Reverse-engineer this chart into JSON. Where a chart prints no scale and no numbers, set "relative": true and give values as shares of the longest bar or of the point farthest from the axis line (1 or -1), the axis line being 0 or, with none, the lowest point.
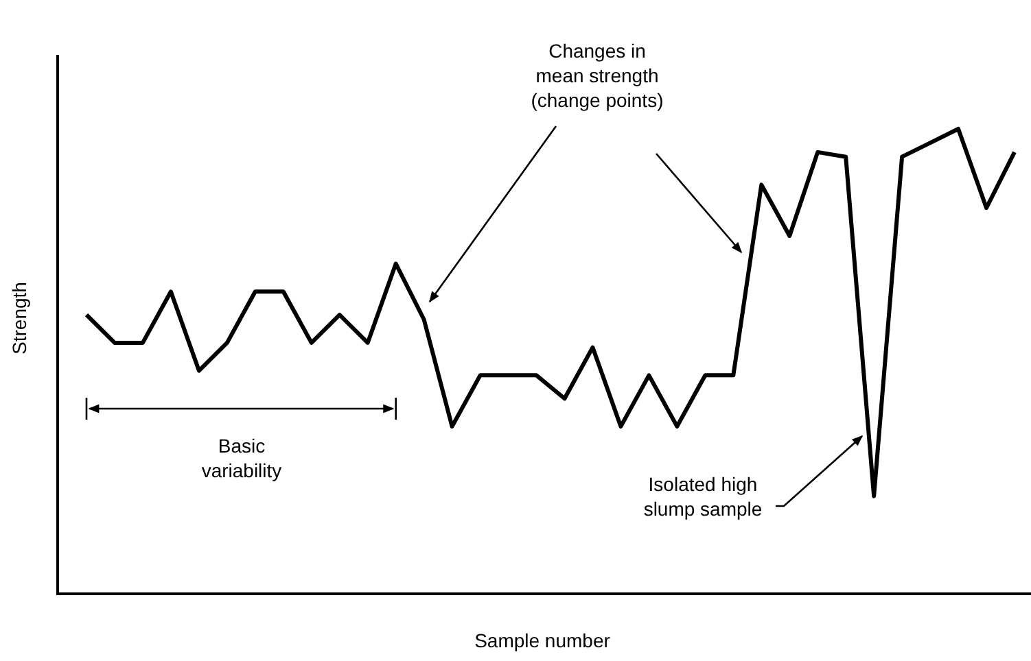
{
  "chart_data": {
    "type": "line",
    "relative": true,
    "xlabel": "Sample number",
    "ylabel": "Strength",
    "color": "#000000",
    "categories": [
      null,
      null,
      null,
      null,
      null,
      null,
      null,
      null,
      null,
      null,
      null,
      null,
      null,
      null,
      null,
      null,
      null,
      null,
      null,
      null,
      null,
      null,
      null,
      null,
      null,
      null,
      null,
      null,
      null,
      null,
      null,
      null,
      null,
      null
    ],
    "values": [
      0.6,
      0.54,
      0.54,
      0.65,
      0.48,
      0.54,
      0.65,
      0.65,
      0.54,
      0.6,
      0.54,
      0.71,
      0.59,
      0.36,
      0.47,
      0.47,
      0.47,
      0.42,
      0.53,
      0.36,
      0.47,
      0.36,
      0.47,
      0.47,
      0.88,
      0.77,
      0.95,
      0.94,
      0.21,
      0.94,
      0.97,
      1,
      0.83,
      0.95
    ],
    "annotations": [
      "Changes in\nmean strength\n(change points)",
      "Basic\nvariability",
      "Isolated high\nslump sample"
    ],
    "marker": "none",
    "line_style": "solid"
  }
}
